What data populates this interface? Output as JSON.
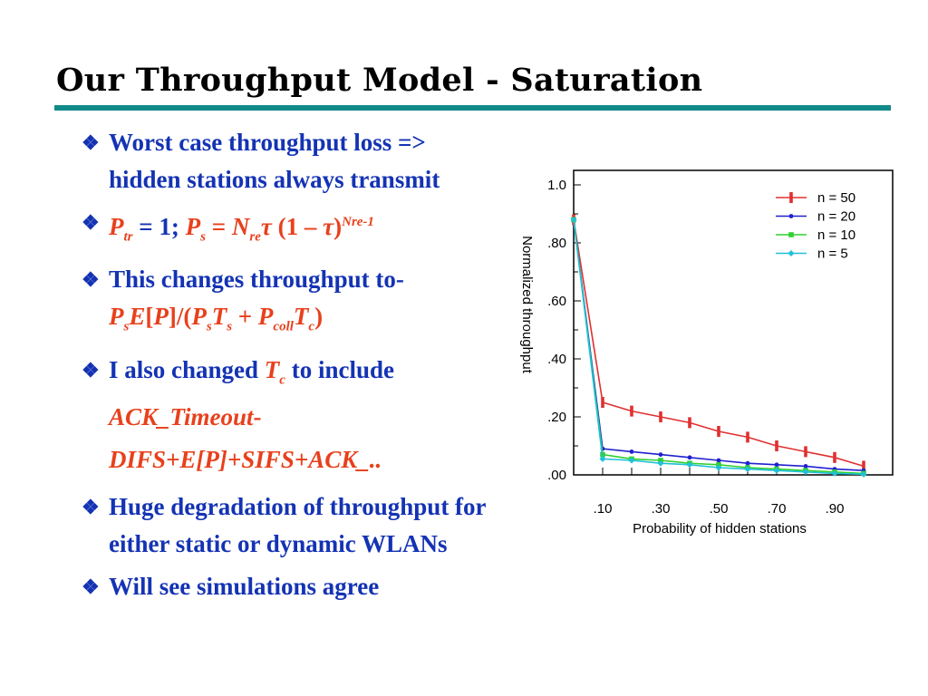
{
  "slide": {
    "title": "Our Throughput Model - Saturation",
    "bullet_marker": "❖",
    "bullets": [
      {
        "text": "Worst case throughput loss => hidden stations always transmit"
      },
      {
        "formula_parts": [
          "P",
          "tr",
          " = 1; ",
          "P",
          "s",
          " = ",
          "N",
          "re",
          "τ",
          " (1 – ",
          "τ",
          ")",
          "Nre-1"
        ]
      },
      {
        "text": "This changes throughput to- ",
        "formula_parts": [
          "P",
          "s",
          "E",
          "[",
          "P",
          "]/(",
          "P",
          "s",
          "T",
          "s",
          " + ",
          "P",
          "coll",
          "T",
          "c",
          ")"
        ]
      },
      {
        "text_a": "I also changed ",
        "formula_parts": [
          "T",
          "c"
        ],
        "text_b": " to include ",
        "red_a": "ACK_Timeout",
        "dash": "-",
        "red_b": "DIFS+E[P]+SIFS+ACK_.."
      },
      {
        "text": "Huge degradation of throughput for either static or dynamic WLANs"
      },
      {
        "text": "Will see simulations agree"
      }
    ]
  },
  "chart_data": {
    "type": "line",
    "xlabel": "Probability of hidden stations",
    "ylabel": "Normalized throughput",
    "xlim": [
      0,
      1.1
    ],
    "ylim": [
      0,
      1.05
    ],
    "x_ticks": [
      ".10",
      ".30",
      ".50",
      ".70",
      ".90"
    ],
    "y_ticks": [
      ".00",
      ".20",
      ".40",
      ".60",
      ".80",
      "1.0"
    ],
    "x": [
      0,
      0.1,
      0.2,
      0.3,
      0.4,
      0.5,
      0.6,
      0.7,
      0.8,
      0.9,
      1.0
    ],
    "series": [
      {
        "name": "n = 50",
        "color": "#e03030",
        "marker": "bar",
        "values": [
          0.88,
          0.25,
          0.22,
          0.2,
          0.18,
          0.15,
          0.13,
          0.1,
          0.08,
          0.06,
          0.03
        ]
      },
      {
        "name": "n = 20",
        "color": "#2020d0",
        "marker": "dot",
        "values": [
          0.88,
          0.09,
          0.08,
          0.07,
          0.06,
          0.05,
          0.04,
          0.035,
          0.03,
          0.02,
          0.015
        ]
      },
      {
        "name": "n = 10",
        "color": "#30d030",
        "marker": "square",
        "values": [
          0.88,
          0.07,
          0.055,
          0.05,
          0.04,
          0.035,
          0.025,
          0.02,
          0.015,
          0.01,
          0.005
        ]
      },
      {
        "name": "n = 5",
        "color": "#20c0d8",
        "marker": "diamond",
        "values": [
          0.88,
          0.055,
          0.05,
          0.04,
          0.035,
          0.025,
          0.02,
          0.015,
          0.01,
          0.005,
          0.002
        ]
      }
    ],
    "legend_position": "top-right",
    "grid": false
  }
}
